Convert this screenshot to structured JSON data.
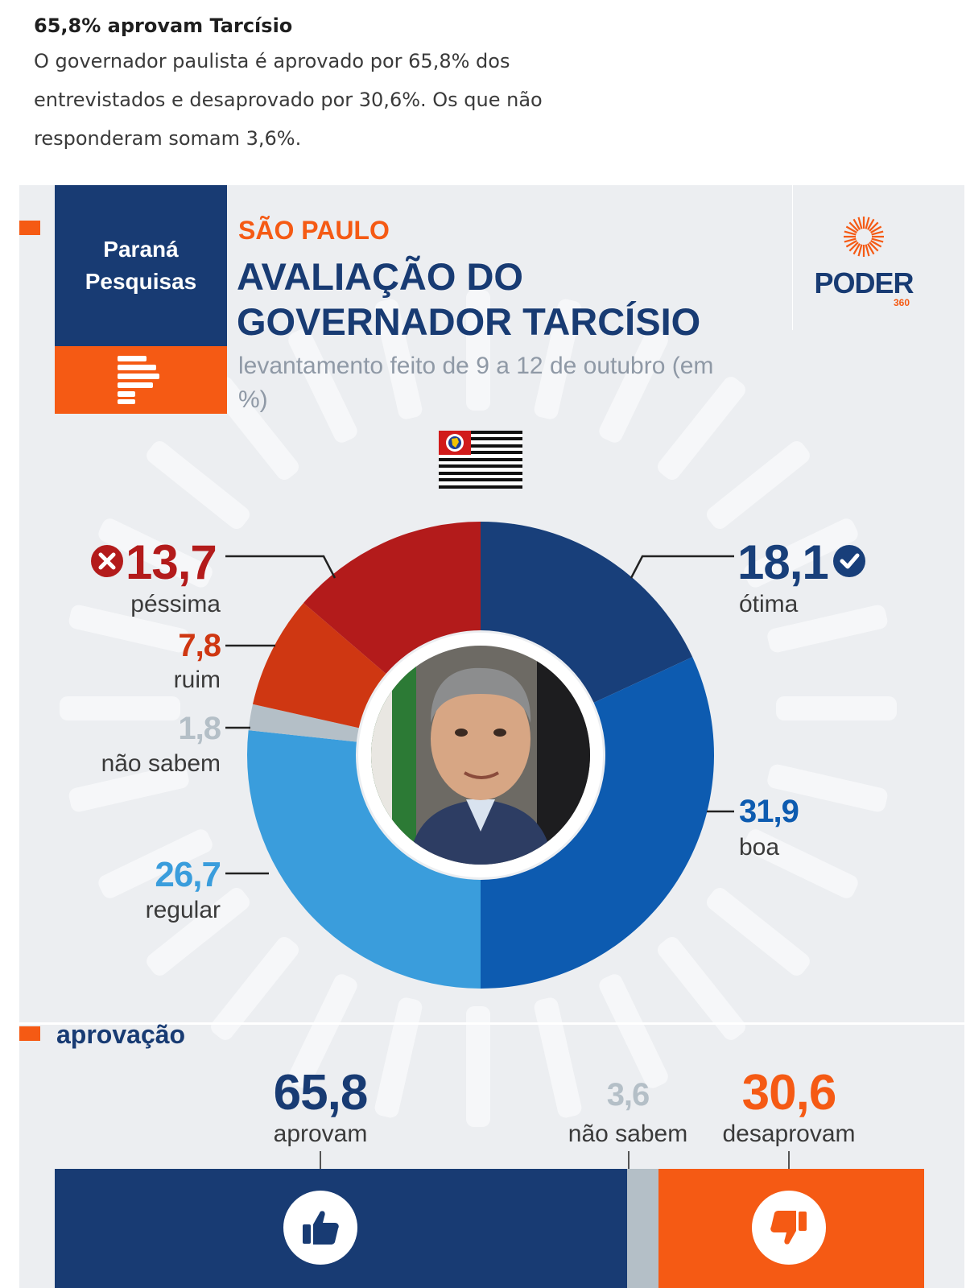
{
  "article": {
    "title": "65,8% aprovam Tarcísio",
    "body": "O governador paulista é aprovado por 65,8% dos entrevistados e desaprovado por 30,6%. Os que não responderam somam 3,6%."
  },
  "card": {
    "source_logo": "Paraná Pesquisas",
    "kicker": "SÃO PAULO",
    "headline": "AVALIAÇÃO DO GOVERNADOR TARCÍSIO",
    "subtitle": "levantamento feito de 9 a 12 de outubro (em %)",
    "publisher_logo": "PODER",
    "publisher_logo_suffix": "360",
    "section_title": "aprovação"
  },
  "colors": {
    "navy": "#183b73",
    "orange": "#f55a14",
    "otima": "#183f7a",
    "boa": "#0d5bb0",
    "regular": "#3a9ddc",
    "nao_sabem": "#b4bfc7",
    "ruim": "#cf3712",
    "pessima": "#b31b1b"
  },
  "chart_data": [
    {
      "type": "pie",
      "title": "AVALIAÇÃO DO GOVERNADOR TARCÍSIO",
      "series": [
        {
          "label": "ótima",
          "value": 18.1,
          "display": "18,1",
          "color": "#183f7a"
        },
        {
          "label": "boa",
          "value": 31.9,
          "display": "31,9",
          "color": "#0d5bb0"
        },
        {
          "label": "regular",
          "value": 26.7,
          "display": "26,7",
          "color": "#3a9ddc"
        },
        {
          "label": "não sabem",
          "value": 1.8,
          "display": "1,8",
          "color": "#b4bfc7"
        },
        {
          "label": "ruim",
          "value": 7.8,
          "display": "7,8",
          "color": "#cf3712"
        },
        {
          "label": "péssima",
          "value": 13.7,
          "display": "13,7",
          "color": "#b31b1b"
        }
      ]
    },
    {
      "type": "bar",
      "title": "aprovação",
      "categories": [
        "aprovam",
        "não sabem",
        "desaprovam"
      ],
      "values": [
        65.8,
        3.6,
        30.6
      ],
      "display": [
        "65,8",
        "3,6",
        "30,6"
      ],
      "colors": [
        "#183b73",
        "#b4bfc7",
        "#f55a14"
      ]
    }
  ]
}
